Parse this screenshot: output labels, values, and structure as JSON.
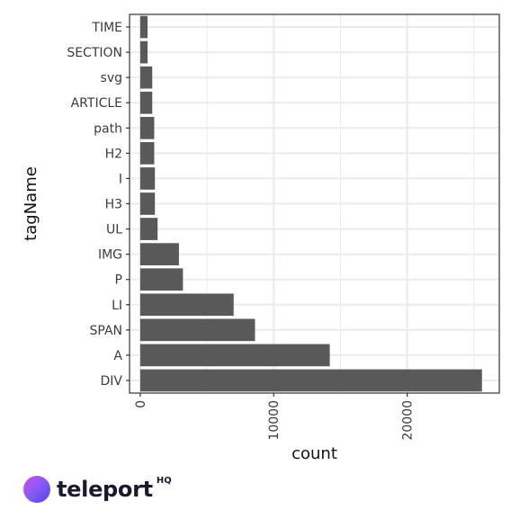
{
  "chart_data": {
    "type": "bar",
    "orientation": "horizontal",
    "xlabel": "count",
    "ylabel": "tagName",
    "categories": [
      "DIV",
      "A",
      "SPAN",
      "LI",
      "P",
      "IMG",
      "UL",
      "H3",
      "I",
      "H2",
      "path",
      "ARTICLE",
      "svg",
      "SECTION",
      "TIME"
    ],
    "values": [
      25600,
      14200,
      8600,
      7000,
      3200,
      2900,
      1300,
      1100,
      1100,
      1050,
      1050,
      900,
      900,
      550,
      550
    ],
    "xlim": [
      -800,
      26900
    ],
    "xticks": [
      0,
      10000,
      20000
    ],
    "xtick_labels": [
      "0",
      "10000",
      "20000"
    ],
    "grid": true,
    "colors": {
      "bar": "#595959",
      "grid": "#ebebeb",
      "border": "#333333"
    }
  },
  "logo": {
    "name": "teleport",
    "suffix": "HQ"
  }
}
